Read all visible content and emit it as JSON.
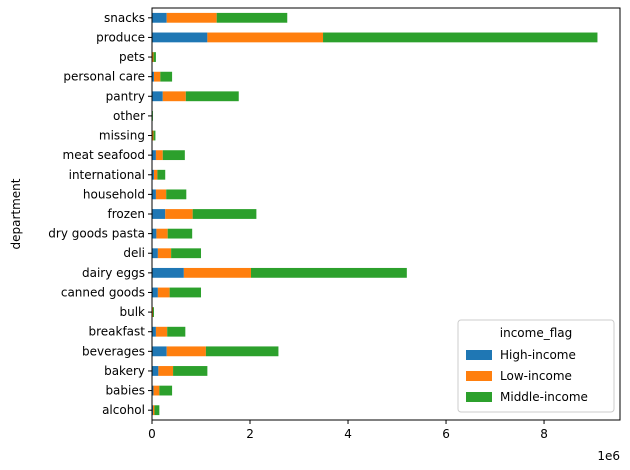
{
  "chart_data": {
    "type": "bar",
    "orientation": "horizontal",
    "stacked": true,
    "ylabel": "department",
    "xlabel": "",
    "x_offset_text": "1e6",
    "xlim": [
      0,
      9.55
    ],
    "xticks": [
      0,
      2,
      4,
      6,
      8
    ],
    "categories": [
      "alcohol",
      "babies",
      "bakery",
      "beverages",
      "breakfast",
      "bulk",
      "canned goods",
      "dairy eggs",
      "deli",
      "dry goods pasta",
      "frozen",
      "household",
      "international",
      "meat seafood",
      "missing",
      "other",
      "pantry",
      "personal care",
      "pets",
      "produce",
      "snacks"
    ],
    "series": [
      {
        "name": "High-income",
        "color": "#1f77b4",
        "values": [
          0.02,
          0.03,
          0.13,
          0.3,
          0.08,
          0.01,
          0.12,
          0.65,
          0.12,
          0.09,
          0.27,
          0.08,
          0.04,
          0.08,
          0.01,
          0.003,
          0.22,
          0.04,
          0.01,
          1.13,
          0.3
        ]
      },
      {
        "name": "Low-income",
        "color": "#ff7f0e",
        "values": [
          0.03,
          0.12,
          0.3,
          0.8,
          0.23,
          0.01,
          0.24,
          1.37,
          0.27,
          0.23,
          0.56,
          0.21,
          0.07,
          0.14,
          0.02,
          0.005,
          0.47,
          0.13,
          0.02,
          2.36,
          1.02
        ]
      },
      {
        "name": "Middle-income",
        "color": "#2ca02c",
        "values": [
          0.1,
          0.26,
          0.7,
          1.48,
          0.37,
          0.02,
          0.64,
          3.18,
          0.61,
          0.5,
          1.3,
          0.41,
          0.16,
          0.45,
          0.04,
          0.01,
          1.08,
          0.24,
          0.05,
          5.6,
          1.44
        ]
      }
    ],
    "legend": {
      "title": "income_flag",
      "placement": "lower-right"
    },
    "grid": false
  }
}
